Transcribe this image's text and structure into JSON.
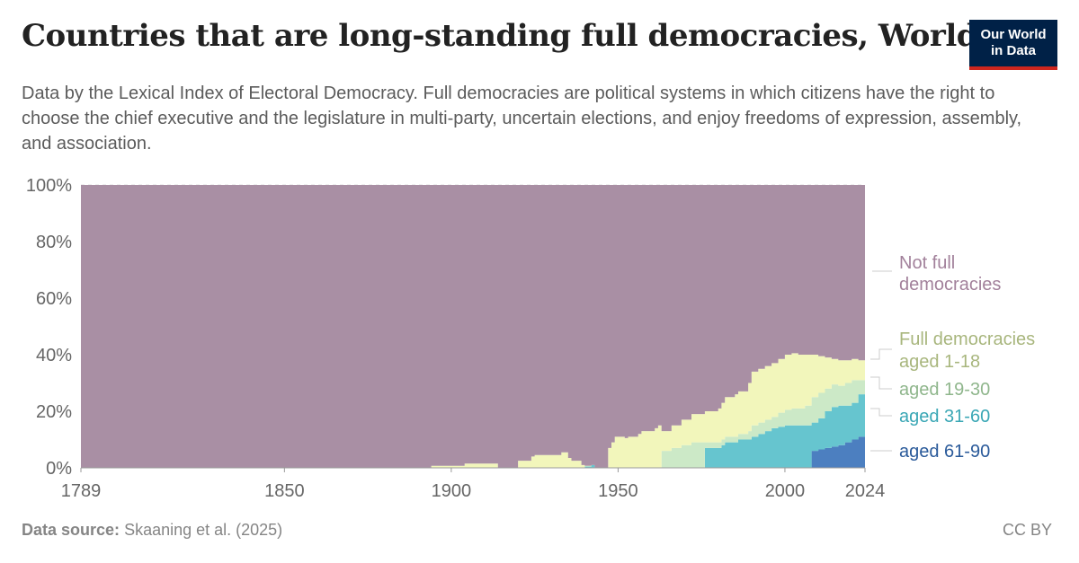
{
  "title": "Countries that are long-standing full democracies, World",
  "subtitle": "Data by the Lexical Index of Electoral Democracy. Full democracies are political systems in which citizens have the right to choose the chief executive and the legislature in multi-party, uncertain elections, and enjoy freedoms of expression, assembly, and association.",
  "logo": {
    "line1": "Our World",
    "line2": "in Data"
  },
  "footer": {
    "source_label": "Data source:",
    "source_text": "Skaaning et al. (2025)",
    "license": "CC BY"
  },
  "chart_data": {
    "type": "area",
    "stacked": true,
    "xlim": [
      1789,
      2024
    ],
    "ylim": [
      0,
      100
    ],
    "y_unit": "%",
    "x_ticks": [
      1789,
      1850,
      1900,
      1950,
      2000,
      2024
    ],
    "y_ticks": [
      0,
      20,
      40,
      60,
      80,
      100
    ],
    "grid": "horizontal-dashed",
    "legend_placement": "right",
    "x": [
      1789,
      1893,
      1894,
      1903,
      1904,
      1913,
      1914,
      1919,
      1920,
      1924,
      1925,
      1932,
      1933,
      1935,
      1936,
      1939,
      1940,
      1942,
      1943,
      1946,
      1947,
      1948,
      1949,
      1952,
      1953,
      1956,
      1957,
      1961,
      1962,
      1963,
      1966,
      1969,
      1972,
      1975,
      1976,
      1980,
      1981,
      1982,
      1985,
      1986,
      1989,
      1990,
      1992,
      1994,
      1996,
      1998,
      2000,
      2002,
      2004,
      2006,
      2008,
      2010,
      2012,
      2014,
      2016,
      2018,
      2020,
      2022,
      2024
    ],
    "series": [
      {
        "name": "aged 61-90",
        "color": "#4c7fc0",
        "values": [
          0,
          0,
          0,
          0,
          0,
          0,
          0,
          0,
          0,
          0,
          0,
          0,
          0,
          0,
          0,
          0,
          0,
          0,
          0,
          0,
          0,
          0,
          0,
          0,
          0,
          0,
          0,
          0,
          0,
          0,
          0,
          0,
          0,
          0,
          0,
          0,
          0,
          0,
          0,
          0,
          0,
          0,
          0,
          0,
          0,
          0,
          0,
          0,
          0,
          0,
          6,
          6.5,
          7,
          7.5,
          8,
          9,
          10,
          11,
          11.5
        ]
      },
      {
        "name": "aged 31-60",
        "color": "#66c5cf",
        "values": [
          0,
          0,
          0,
          0,
          0,
          0,
          0,
          0,
          0,
          0,
          0,
          0,
          0,
          0,
          0,
          0,
          0.5,
          1,
          0,
          0,
          0,
          0,
          0,
          0,
          0,
          0,
          0,
          0,
          0,
          0,
          0,
          0,
          0,
          0,
          7,
          7,
          8,
          9,
          9,
          10,
          10,
          11,
          12,
          13,
          14,
          14.5,
          15,
          15,
          15,
          15,
          10,
          11,
          13,
          14,
          14,
          13,
          13,
          15,
          18
        ]
      },
      {
        "name": "aged 19-30",
        "color": "#cce9c7",
        "values": [
          0,
          0,
          0,
          0,
          0,
          0,
          0,
          0,
          0,
          0,
          0,
          0,
          0,
          0,
          0,
          0,
          0,
          0,
          0,
          0,
          0,
          0,
          0,
          0,
          0,
          0,
          0,
          0,
          0,
          6,
          7,
          8,
          9,
          9,
          2,
          2,
          2,
          2,
          2,
          2,
          3,
          4,
          4,
          4,
          4,
          5,
          5.5,
          6,
          6,
          7,
          9,
          9,
          8,
          8,
          7,
          8,
          8,
          5,
          2
        ]
      },
      {
        "name": "Full democracies aged 1-18",
        "color": "#f2f6bb",
        "values": [
          0,
          0,
          0.7,
          0.7,
          1.5,
          1.5,
          0,
          0,
          2.5,
          4,
          4.5,
          4.5,
          5.5,
          3.5,
          2.5,
          1,
          0.2,
          0,
          0,
          0,
          7,
          9,
          11,
          10.5,
          11,
          12,
          13,
          14,
          15,
          7,
          8,
          9,
          10,
          10,
          11,
          12,
          13,
          14,
          15,
          15,
          17,
          19,
          19,
          19,
          19,
          19,
          19.5,
          19.5,
          19,
          18,
          15,
          13,
          11,
          9,
          9,
          8,
          7.5,
          7,
          6.5
        ]
      },
      {
        "name": "Not full democracies",
        "color": "#a98fa4",
        "values": [
          100,
          100,
          99.3,
          99.3,
          98.5,
          98.5,
          100,
          100,
          97.5,
          96,
          95.5,
          95.5,
          94.5,
          96.5,
          97.5,
          99,
          99.3,
          99,
          100,
          100,
          93,
          91,
          89,
          89.5,
          89,
          88,
          87,
          86,
          85,
          87,
          85,
          83,
          81,
          81,
          80,
          79,
          77,
          75,
          74,
          73,
          70,
          66,
          65,
          64,
          63,
          61.5,
          60,
          59.5,
          60,
          60,
          60,
          60.5,
          61,
          61.5,
          62,
          62,
          61.5,
          62,
          62
        ]
      }
    ]
  },
  "labels": {
    "not_full_1": "Not full",
    "not_full_2": "democracies",
    "full_1": "Full democracies",
    "full_2": "aged 1-18",
    "aged_19_30": "aged 19-30",
    "aged_31_60": "aged 31-60",
    "aged_61_90": "aged 61-90"
  },
  "label_colors": {
    "not_full": "#a2819b",
    "full_1_18": "#a8b67d",
    "aged_19_30": "#8fb68c",
    "aged_31_60": "#3aa7b5",
    "aged_61_90": "#2a5a9a"
  }
}
